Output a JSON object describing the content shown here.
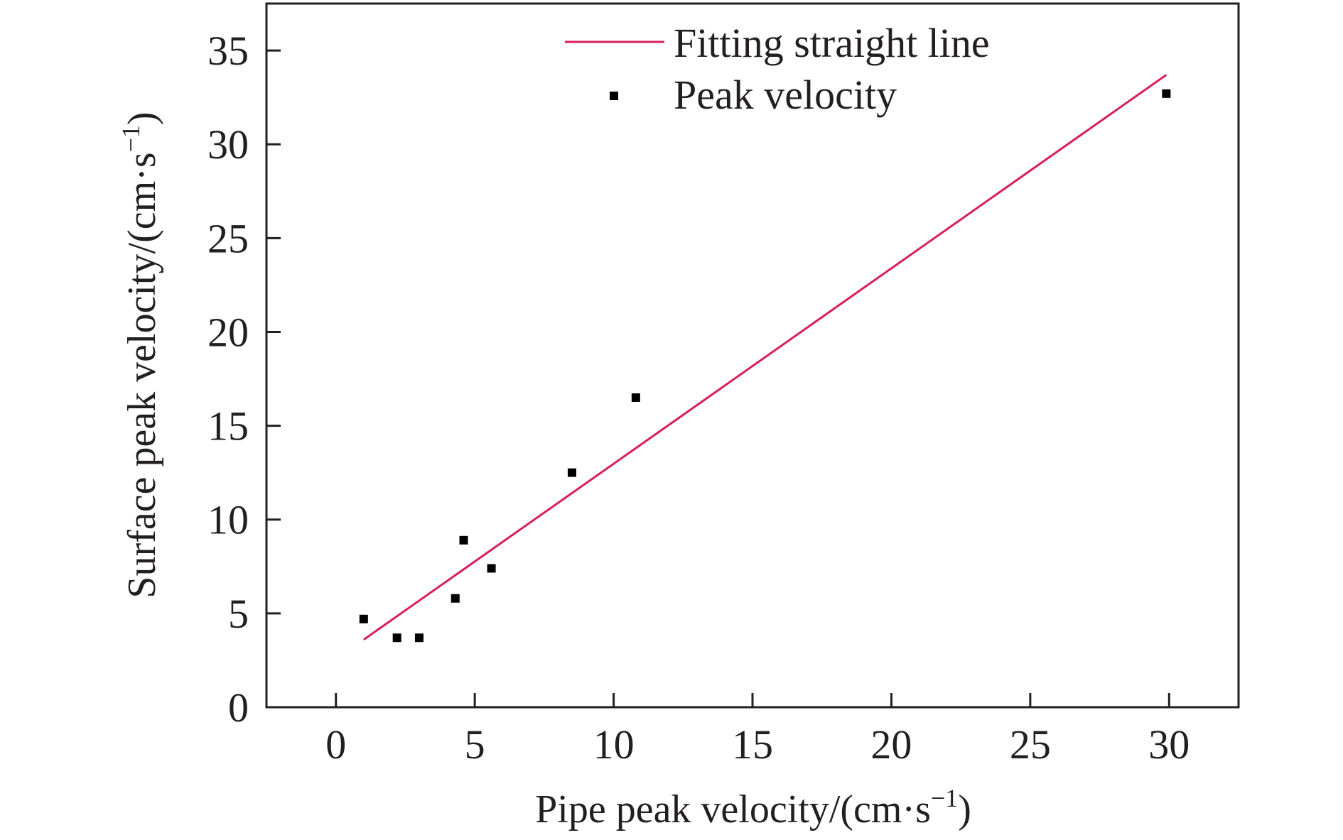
{
  "chart_data": {
    "type": "scatter",
    "xlabel": "Pipe peak velocity/(cm·s",
    "xlabel_sup": "−1",
    "xlabel_end": ")",
    "ylabel": "Surface peak velocity/(cm·s",
    "ylabel_sup": "−1",
    "ylabel_end": ")",
    "xlim": [
      -2.5,
      32.5
    ],
    "ylim": [
      0,
      37.5
    ],
    "xticks": [
      0,
      5,
      10,
      15,
      20,
      25,
      30
    ],
    "yticks": [
      0,
      5,
      10,
      15,
      20,
      25,
      30,
      35
    ],
    "grid": false,
    "legend_position": "top",
    "series": [
      {
        "name": "Fitting straight line",
        "kind": "line",
        "color": "#d81e5b",
        "x": [
          1.0,
          29.9
        ],
        "y": [
          3.6,
          33.7
        ]
      },
      {
        "name": "Peak velocity",
        "kind": "scatter",
        "color": "#000000",
        "x": [
          1.0,
          2.2,
          3.0,
          4.3,
          4.6,
          5.6,
          8.5,
          10.8,
          29.9
        ],
        "y": [
          4.7,
          3.7,
          3.7,
          5.8,
          8.9,
          7.4,
          12.5,
          16.5,
          32.7
        ]
      }
    ]
  }
}
